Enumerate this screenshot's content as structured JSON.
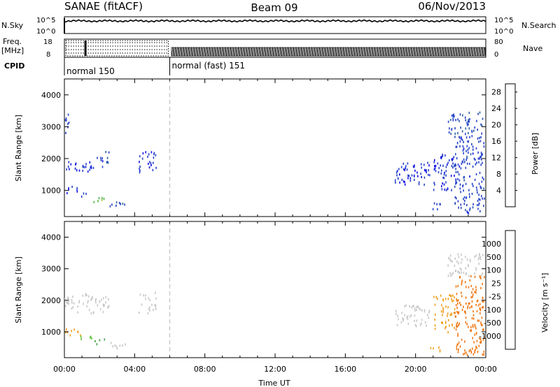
{
  "header": {
    "station": "SANAE (fitACF)",
    "beam": "Beam 09",
    "date": "06/Nov/2013"
  },
  "strip": {
    "nsky_label": "N.Sky",
    "nsearch_label": "N.Search",
    "freq_label": "Freq.",
    "mhz_label": "[MHz]",
    "nave_label": "Nave",
    "cpid_label": "CPID",
    "nsky_ticks": [
      "10^5",
      "10^0"
    ],
    "nsearch_ticks": [
      "10^5",
      "10^0"
    ],
    "freq_ticks": [
      "18",
      "8"
    ],
    "nave_ticks": [
      "80",
      "0"
    ],
    "cpid_segments": [
      {
        "label": "normal 150",
        "start_hour": 0,
        "end_hour": 6
      },
      {
        "label": "normal (fast) 151",
        "start_hour": 6,
        "end_hour": 24
      }
    ]
  },
  "colors": {
    "power_scale": [
      "#1414e6",
      "#2846c8",
      "#2d64a0",
      "#3c8c6e",
      "#50b446",
      "#9bd23c",
      "#e6c81e",
      "#f0a014",
      "#f0781e",
      "#e64614",
      "#f01e1e"
    ],
    "velocity_scale": [
      "#1e1ec8",
      "#2d50b4",
      "#3c78a0",
      "#46a050",
      "#64c83c",
      "#c8c8c8",
      "#f0c81e",
      "#f0a01e",
      "#f07814",
      "#f04614",
      "#f01414"
    ]
  },
  "chart_data": [
    {
      "type": "heatmap",
      "name": "power",
      "xlabel": "",
      "ylabel": "Slant Range [km]",
      "xlim": [
        0,
        24
      ],
      "ylim": [
        180,
        4500
      ],
      "yticks": [
        1000,
        2000,
        3000,
        4000
      ],
      "colorbar": {
        "label": "Power [dB]",
        "ticks": [
          4,
          8,
          12,
          16,
          20,
          24,
          28
        ],
        "range": [
          0,
          30
        ]
      },
      "regions": [
        {
          "x0": 0.0,
          "x1": 1.6,
          "y0": 1600,
          "y1": 1950,
          "value": 3
        },
        {
          "x0": 1.6,
          "x1": 2.2,
          "y0": 1700,
          "y1": 2100,
          "value": 4
        },
        {
          "x0": 2.2,
          "x1": 2.6,
          "y0": 1850,
          "y1": 2250,
          "value": 6
        },
        {
          "x0": 0.0,
          "x1": 0.9,
          "y0": 900,
          "y1": 1150,
          "value": 3
        },
        {
          "x0": 0.9,
          "x1": 1.6,
          "y0": 800,
          "y1": 950,
          "value": 4
        },
        {
          "x0": 1.6,
          "x1": 2.3,
          "y0": 600,
          "y1": 800,
          "value": 13
        },
        {
          "x0": 2.3,
          "x1": 3.0,
          "y0": 500,
          "y1": 700,
          "value": 5
        },
        {
          "x0": 3.0,
          "x1": 3.5,
          "y0": 500,
          "y1": 650,
          "value": 5
        },
        {
          "x0": 4.2,
          "x1": 5.2,
          "y0": 1600,
          "y1": 2300,
          "value": 3
        },
        {
          "x0": 0.0,
          "x1": 0.3,
          "y0": 2800,
          "y1": 3500,
          "value": 4
        },
        {
          "x0": 18.8,
          "x1": 20.8,
          "y0": 1200,
          "y1": 1900,
          "value": 3
        },
        {
          "x0": 20.8,
          "x1": 21.4,
          "y0": 400,
          "y1": 700,
          "value": 4
        },
        {
          "x0": 21.0,
          "x1": 22.2,
          "y0": 1000,
          "y1": 2200,
          "value": 3
        },
        {
          "x0": 22.2,
          "x1": 23.9,
          "y0": 300,
          "y1": 2800,
          "value": 4
        },
        {
          "x0": 21.8,
          "x1": 23.8,
          "y0": 2800,
          "y1": 3500,
          "value": 5
        }
      ]
    },
    {
      "type": "heatmap",
      "name": "velocity",
      "xlabel": "Time UT",
      "ylabel": "Slant Range [km]",
      "xlim": [
        0,
        24
      ],
      "ylim": [
        180,
        4500
      ],
      "xticks": [
        "00:00",
        "04:00",
        "08:00",
        "12:00",
        "16:00",
        "20:00",
        "00:00"
      ],
      "yticks": [
        1000,
        2000,
        3000,
        4000
      ],
      "colorbar": {
        "label": "Velocity [m s⁻¹]",
        "ticks": [
          "1000",
          "500",
          "100",
          "25",
          "-25",
          "-100",
          "-500",
          "-1000"
        ]
      },
      "regions": [
        {
          "x0": 0.0,
          "x1": 2.6,
          "y0": 1600,
          "y1": 2250,
          "value": 0
        },
        {
          "x0": 0.0,
          "x1": 0.9,
          "y0": 900,
          "y1": 1150,
          "value": -150
        },
        {
          "x0": 0.9,
          "x1": 1.6,
          "y0": 780,
          "y1": 950,
          "value": 80
        },
        {
          "x0": 1.6,
          "x1": 2.3,
          "y0": 600,
          "y1": 800,
          "value": 200
        },
        {
          "x0": 2.3,
          "x1": 3.5,
          "y0": 500,
          "y1": 700,
          "value": 0
        },
        {
          "x0": 4.2,
          "x1": 5.2,
          "y0": 1600,
          "y1": 2300,
          "value": 0
        },
        {
          "x0": 18.8,
          "x1": 20.8,
          "y0": 1200,
          "y1": 1900,
          "value": 0
        },
        {
          "x0": 20.8,
          "x1": 21.4,
          "y0": 400,
          "y1": 700,
          "value": -150
        },
        {
          "x0": 21.0,
          "x1": 22.2,
          "y0": 1000,
          "y1": 2200,
          "value": -200
        },
        {
          "x0": 22.2,
          "x1": 23.9,
          "y0": 300,
          "y1": 2800,
          "value": -300
        },
        {
          "x0": 21.8,
          "x1": 23.8,
          "y0": 2800,
          "y1": 3500,
          "value": 0
        }
      ]
    }
  ]
}
